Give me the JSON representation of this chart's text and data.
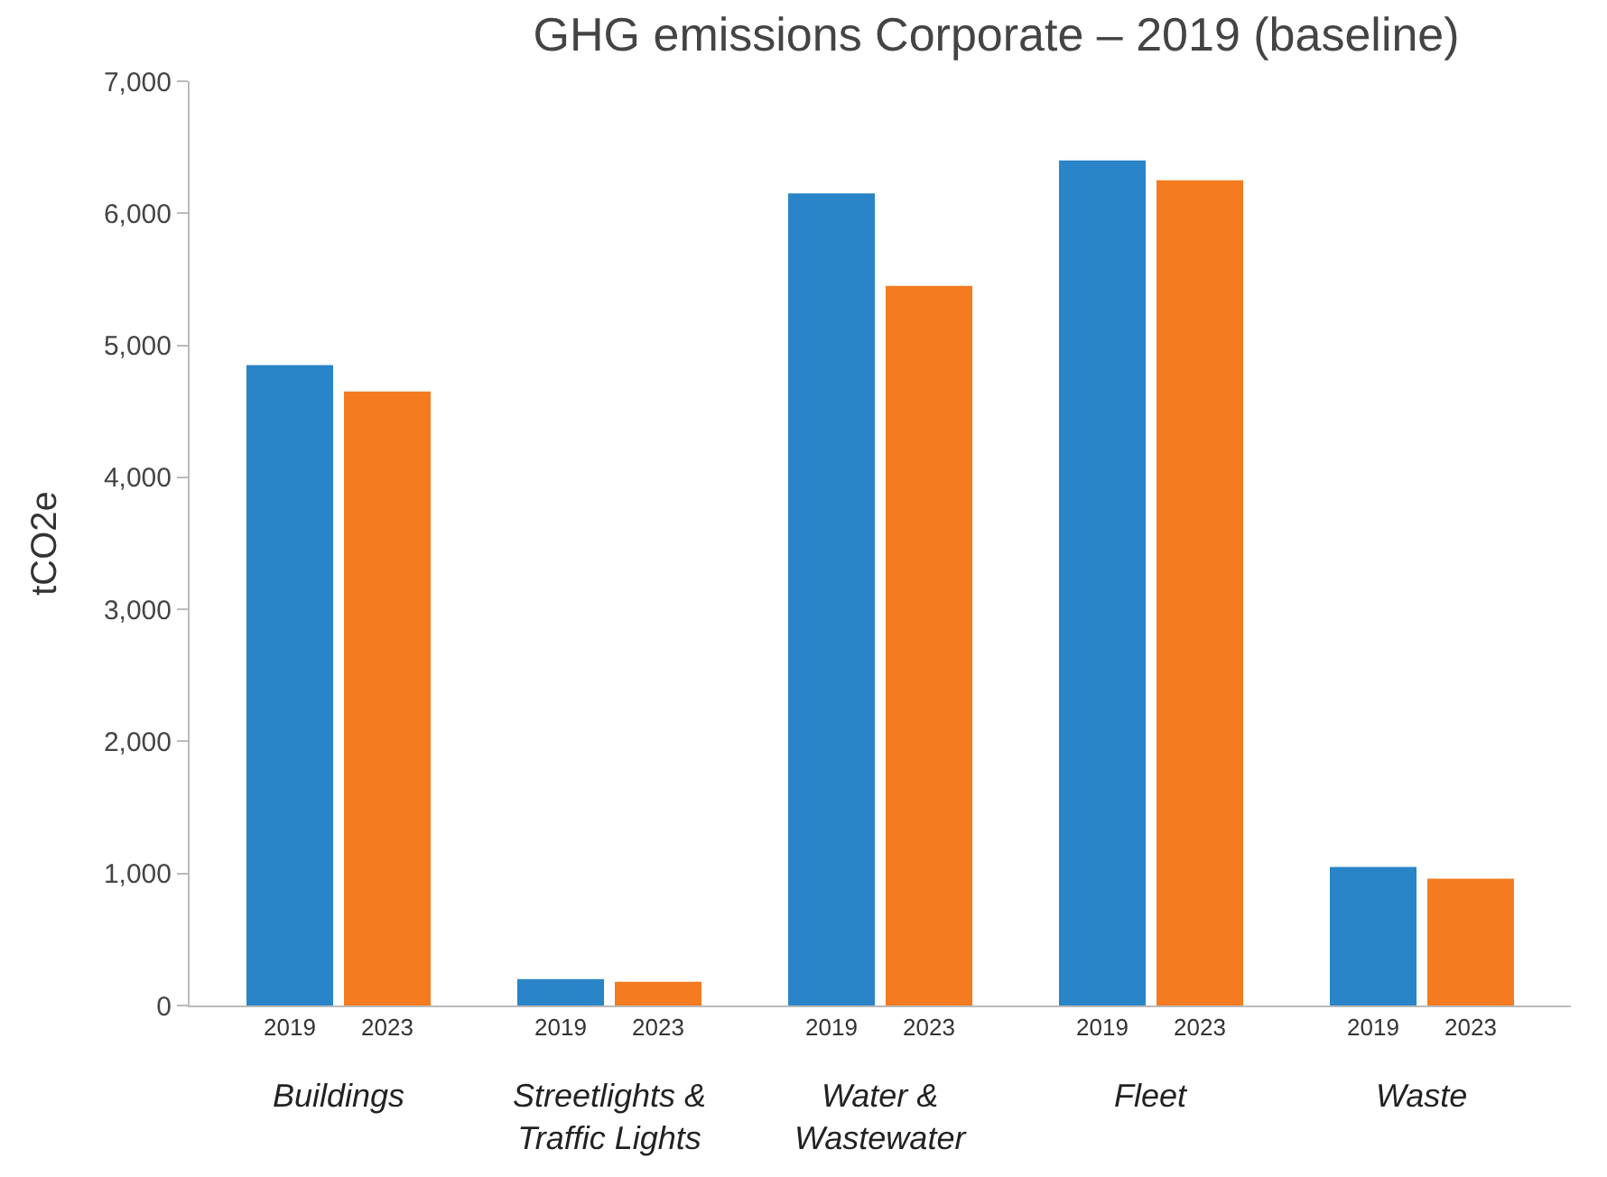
{
  "chart_data": {
    "type": "bar",
    "title": "GHG emissions Corporate – 2019 (baseline)",
    "ylabel": "tCO2e",
    "categories": [
      "Buildings",
      "Streetlights & Traffic Lights",
      "Water & Wastewater",
      "Fleet",
      "Waste"
    ],
    "series": [
      {
        "name": "2019",
        "color": "#2a84c8",
        "values": [
          4850,
          200,
          6150,
          6400,
          1050
        ]
      },
      {
        "name": "2023",
        "color": "#f47b20",
        "values": [
          4650,
          180,
          5450,
          6250,
          960
        ]
      }
    ],
    "ylim": [
      0,
      7000
    ],
    "yticks": [
      {
        "value": 0,
        "label": "0"
      },
      {
        "value": 1000,
        "label": "1,000"
      },
      {
        "value": 2000,
        "label": "2,000"
      },
      {
        "value": 3000,
        "label": "3,000"
      },
      {
        "value": 4000,
        "label": "4,000"
      },
      {
        "value": 5000,
        "label": "5,000"
      },
      {
        "value": 6000,
        "label": "6,000"
      },
      {
        "value": 7000,
        "label": "7,000"
      }
    ],
    "legend": false
  }
}
